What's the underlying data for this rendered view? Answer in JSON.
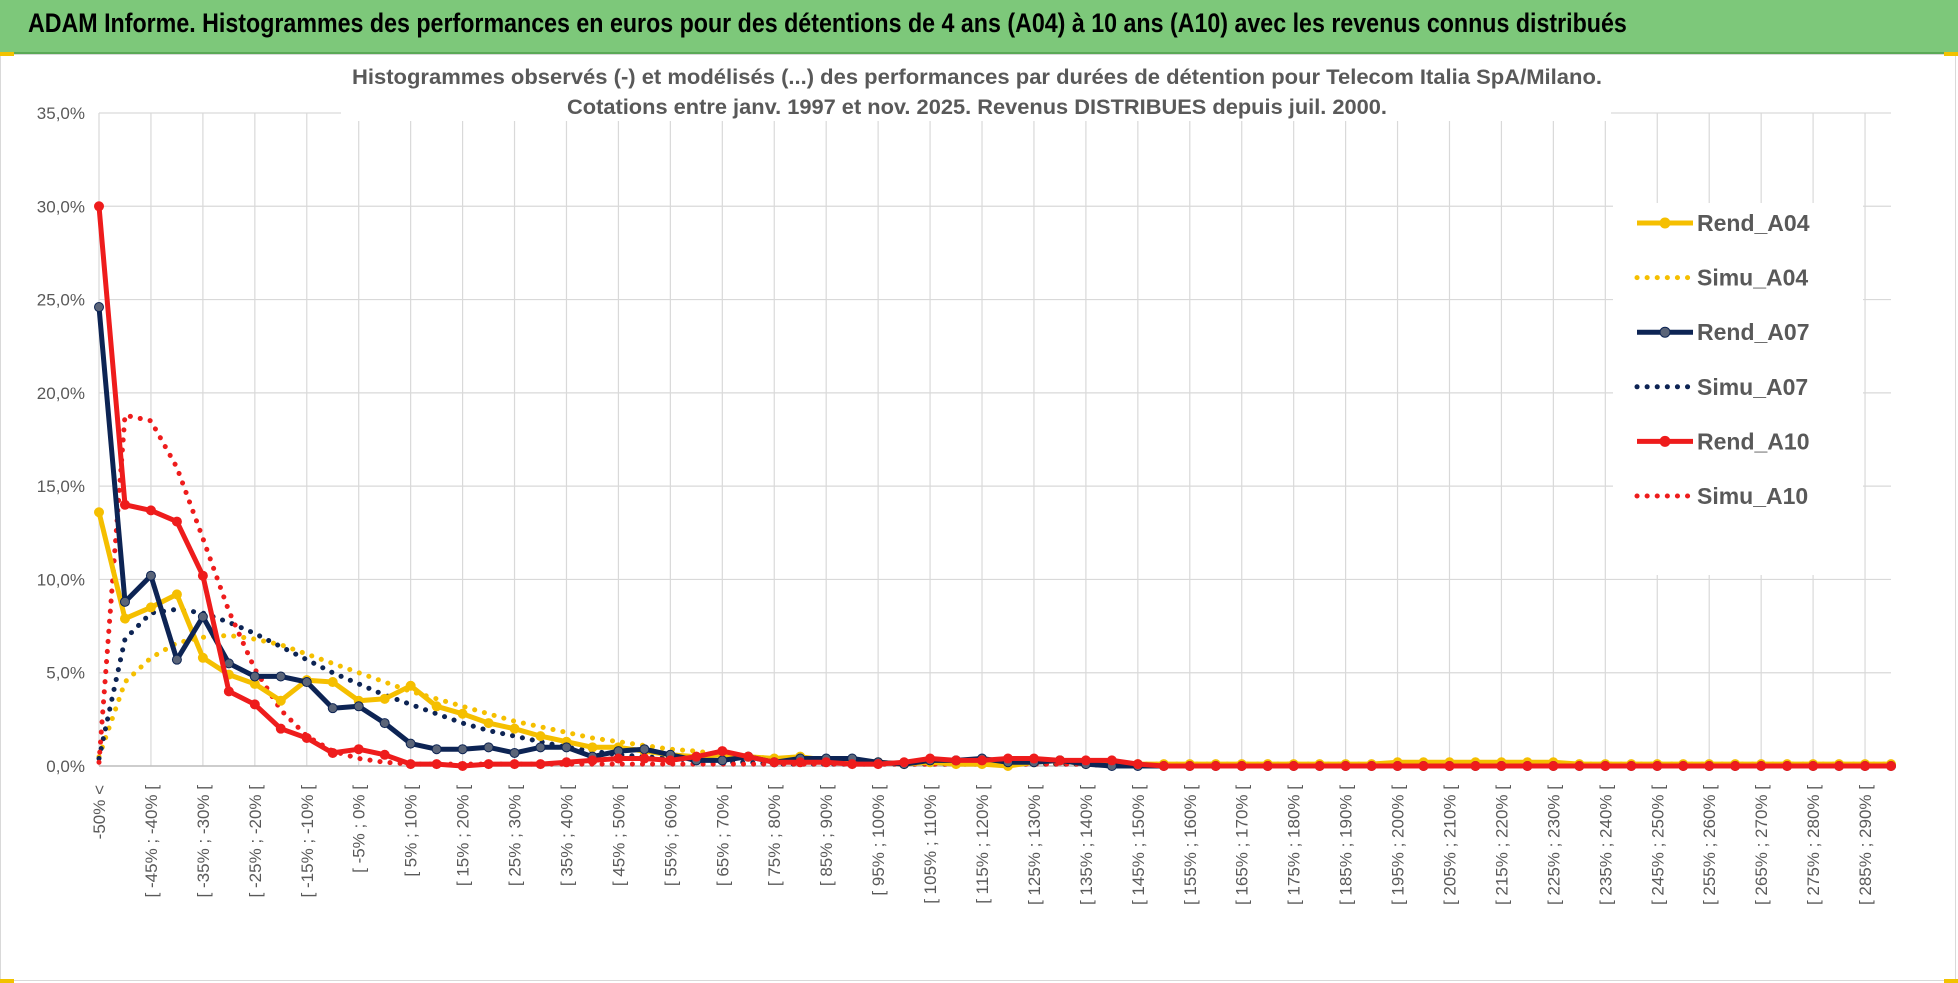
{
  "banner": {
    "title": "ADAM Informe. Histogrammes des performances en euros pour des détentions de 4 ans (A04) à 10 ans (A10) avec les revenus connus distribués"
  },
  "chart_data": {
    "type": "line",
    "title_line1": "Histogrammes observés (-) et modélisés (...) des performances par durées de détention pour Telecom Italia SpA/Milano.",
    "title_line2": "Cotations entre janv. 1997 et nov. 2025. Revenus DISTRIBUES depuis juil. 2000.",
    "xlabel": "",
    "ylabel": "",
    "ylim": [
      0,
      35
    ],
    "yticks": [
      "0,0%",
      "5,0%",
      "10,0%",
      "15,0%",
      "20,0%",
      "25,0%",
      "30,0%",
      "35,0%"
    ],
    "grid": true,
    "legend_position": "right",
    "x_labels": [
      "-50% <",
      "",
      "[ -45% ; -40% [",
      "",
      "[ -35% ; -30% [",
      "",
      "[ -25% ; -20% [",
      "",
      "[ -15% ; -10% [",
      "",
      "[ -5% ; 0% [",
      "",
      "[ 5% ; 10% [",
      "",
      "[ 15% ; 20% [",
      "",
      "[ 25% ; 30% [",
      "",
      "[ 35% ; 40% [",
      "",
      "[ 45% ; 50% [",
      "",
      "[ 55% ; 60% [",
      "",
      "[ 65% ; 70% [",
      "",
      "[ 75% ; 80% [",
      "",
      "[ 85% ; 90% [",
      "",
      "[ 95% ; 100% [",
      "",
      "[ 105% ; 110% [",
      "",
      "[ 115% ; 120% [",
      "",
      "[ 125% ; 130% [",
      "",
      "[ 135% ; 140% [",
      "",
      "[ 145% ; 150% [",
      "",
      "[ 155% ; 160% [",
      "",
      "[ 165% ; 170% [",
      "",
      "[ 175% ; 180% [",
      "",
      "[ 185% ; 190% [",
      "",
      "[ 195% ; 200% [",
      "",
      "[ 205% ; 210% [",
      "",
      "[ 215% ; 220% [",
      "",
      "[ 225% ; 230% [",
      "",
      "[ 235% ; 240% [",
      "",
      "[ 245% ; 250% [",
      "",
      "[ 255% ; 260% [",
      "",
      "[ 265% ; 270% [",
      "",
      "[ 275% ; 280% [",
      "",
      "[ 285% ; 290% [",
      ""
    ],
    "series": [
      {
        "name": "Rend_A04",
        "style": "solid",
        "color": "#f5bf00",
        "values": [
          13.6,
          7.9,
          8.5,
          9.2,
          5.8,
          4.9,
          4.4,
          3.5,
          4.6,
          4.5,
          3.5,
          3.6,
          4.3,
          3.2,
          2.8,
          2.3,
          2.0,
          1.6,
          1.3,
          1.0,
          1.0,
          0.8,
          0.6,
          0.5,
          0.6,
          0.5,
          0.4,
          0.5,
          0.3,
          0.3,
          0.2,
          0.1,
          0.2,
          0.1,
          0.1,
          0.0,
          0.2,
          0.3,
          0.1,
          0.1,
          0.1,
          0.1,
          0.1,
          0.1,
          0.1,
          0.1,
          0.1,
          0.1,
          0.1,
          0.1,
          0.2,
          0.2,
          0.2,
          0.2,
          0.2,
          0.2,
          0.2,
          0.1,
          0.1,
          0.1,
          0.1,
          0.1,
          0.1,
          0.1,
          0.1,
          0.1,
          0.1,
          0.1,
          0.1,
          0.1
        ]
      },
      {
        "name": "Simu_A04",
        "style": "dotted",
        "color": "#f5bf00",
        "values": [
          0.5,
          4.5,
          5.8,
          6.6,
          6.9,
          7.0,
          6.8,
          6.5,
          6.0,
          5.5,
          5.0,
          4.5,
          4.0,
          3.6,
          3.2,
          2.8,
          2.4,
          2.1,
          1.8,
          1.5,
          1.3,
          1.1,
          0.9,
          0.8,
          0.6,
          0.5,
          0.4,
          0.3,
          0.3,
          0.2,
          0.2,
          0.1,
          0.1,
          0.1,
          0.1,
          0.1,
          0.1,
          0.1,
          0.1,
          0.1,
          0.1,
          0.1,
          0.1,
          0.1,
          0.1,
          0.1,
          0.1,
          0.1,
          0.1,
          0.1,
          0.1,
          0.1,
          0.1,
          0.1,
          0.1,
          0.1,
          0.1,
          0.1,
          0.1,
          0.1,
          0.1,
          0.1,
          0.1,
          0.1,
          0.1,
          0.1,
          0.1,
          0.1,
          0.1,
          0.1
        ]
      },
      {
        "name": "Rend_A07",
        "style": "solid",
        "color": "#0d2454",
        "values": [
          24.6,
          8.8,
          10.2,
          5.7,
          8.0,
          5.5,
          4.8,
          4.8,
          4.5,
          3.1,
          3.2,
          2.3,
          1.2,
          0.9,
          0.9,
          1.0,
          0.7,
          1.0,
          1.0,
          0.5,
          0.8,
          0.9,
          0.6,
          0.3,
          0.3,
          0.5,
          0.2,
          0.4,
          0.4,
          0.4,
          0.2,
          0.1,
          0.3,
          0.3,
          0.4,
          0.2,
          0.2,
          0.3,
          0.1,
          0.0,
          0.0,
          0.0,
          0.0,
          0.0,
          0.0,
          0.0,
          0.0,
          0.0,
          0.0,
          0.0,
          0.0,
          0.0,
          0.0,
          0.0,
          0.0,
          0.0,
          0.0,
          0.0,
          0.0,
          0.0,
          0.0,
          0.0,
          0.0,
          0.0,
          0.0,
          0.0,
          0.0,
          0.0,
          0.0,
          0.0
        ]
      },
      {
        "name": "Simu_A07",
        "style": "dotted",
        "color": "#0d2454",
        "values": [
          0.4,
          6.8,
          8.2,
          8.4,
          8.2,
          7.7,
          7.1,
          6.4,
          5.7,
          5.0,
          4.4,
          3.8,
          3.3,
          2.8,
          2.3,
          1.9,
          1.6,
          1.3,
          1.0,
          0.8,
          0.6,
          0.5,
          0.4,
          0.3,
          0.2,
          0.2,
          0.1,
          0.1,
          0.1,
          0.1,
          0.1,
          0.1,
          0.1,
          0.1,
          0.1,
          0.1,
          0.1,
          0.1,
          0.1,
          0.0,
          0.0,
          0.0,
          0.0,
          0.0,
          0.0,
          0.0,
          0.0,
          0.0,
          0.0,
          0.0,
          0.0,
          0.0,
          0.0,
          0.0,
          0.0,
          0.0,
          0.0,
          0.0,
          0.0,
          0.0,
          0.0,
          0.0,
          0.0,
          0.0,
          0.0,
          0.0,
          0.0,
          0.0,
          0.0,
          0.0
        ]
      },
      {
        "name": "Rend_A10",
        "style": "solid",
        "color": "#ee1c1c",
        "values": [
          30.0,
          14.0,
          13.7,
          13.1,
          10.2,
          4.0,
          3.3,
          2.0,
          1.5,
          0.7,
          0.9,
          0.6,
          0.1,
          0.1,
          0.0,
          0.1,
          0.1,
          0.1,
          0.2,
          0.3,
          0.4,
          0.4,
          0.3,
          0.5,
          0.8,
          0.5,
          0.2,
          0.2,
          0.2,
          0.1,
          0.1,
          0.2,
          0.4,
          0.3,
          0.3,
          0.4,
          0.4,
          0.3,
          0.3,
          0.3,
          0.1,
          0.0,
          0.0,
          0.0,
          0.0,
          0.0,
          0.0,
          0.0,
          0.0,
          0.0,
          0.0,
          0.0,
          0.0,
          0.0,
          0.0,
          0.0,
          0.0,
          0.0,
          0.0,
          0.0,
          0.0,
          0.0,
          0.0,
          0.0,
          0.0,
          0.0,
          0.0,
          0.0,
          0.0,
          0.0
        ]
      },
      {
        "name": "Simu_A10",
        "style": "dotted",
        "color": "#ee1c1c",
        "values": [
          0.2,
          18.8,
          18.5,
          16.0,
          12.2,
          8.3,
          5.2,
          3.0,
          1.6,
          0.8,
          0.4,
          0.2,
          0.1,
          0.1,
          0.1,
          0.1,
          0.1,
          0.1,
          0.1,
          0.1,
          0.1,
          0.1,
          0.1,
          0.1,
          0.1,
          0.1,
          0.1,
          0.1,
          0.1,
          0.1,
          0.1,
          0.1,
          0.1,
          0.1,
          0.1,
          0.1,
          0.1,
          0.1,
          0.1,
          0.0,
          0.0,
          0.0,
          0.0,
          0.0,
          0.0,
          0.0,
          0.0,
          0.0,
          0.0,
          0.0,
          0.0,
          0.0,
          0.0,
          0.0,
          0.0,
          0.0,
          0.0,
          0.0,
          0.0,
          0.0,
          0.0,
          0.0,
          0.0,
          0.0,
          0.0,
          0.0,
          0.0,
          0.0,
          0.0,
          0.0
        ]
      }
    ]
  }
}
